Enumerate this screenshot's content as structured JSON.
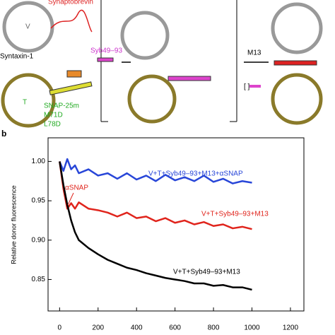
{
  "diagram": {
    "labels": [
      "Synaptobrevin",
      "V",
      "Syntaxin-1",
      "T",
      "SNAP-25m",
      "M71D",
      "L78D",
      "Syb49–93",
      "M13"
    ],
    "panel_label": "b"
  },
  "chart_data": {
    "type": "line",
    "ylabel": "Relative donor fluorescence",
    "annotation": "αSNAP",
    "x": [
      0,
      20,
      40,
      60,
      80,
      100,
      150,
      200,
      250,
      300,
      350,
      400,
      450,
      500,
      550,
      600,
      650,
      700,
      750,
      800,
      850,
      900,
      950,
      1000
    ],
    "series": [
      {
        "name": "V+T+Syb49–93+M13+αSNAP",
        "color": "#2846d8",
        "values": [
          1.0,
          0.988,
          1.003,
          0.99,
          0.995,
          0.985,
          0.99,
          0.982,
          0.985,
          0.978,
          0.985,
          0.977,
          0.982,
          0.975,
          0.983,
          0.976,
          0.98,
          0.975,
          0.982,
          0.974,
          0.978,
          0.972,
          0.975,
          0.973
        ]
      },
      {
        "name": "V+T+Syb49–93+M13",
        "color": "#e0241c",
        "values": [
          1.0,
          0.965,
          0.94,
          0.947,
          0.94,
          0.948,
          0.94,
          0.938,
          0.935,
          0.93,
          0.935,
          0.928,
          0.93,
          0.924,
          0.928,
          0.922,
          0.925,
          0.92,
          0.923,
          0.918,
          0.92,
          0.915,
          0.917,
          0.914
        ]
      },
      {
        "name": "V+T+Syb49–93+M13",
        "color": "#000000",
        "values": [
          1.0,
          0.97,
          0.945,
          0.925,
          0.91,
          0.9,
          0.89,
          0.882,
          0.875,
          0.87,
          0.865,
          0.862,
          0.858,
          0.855,
          0.852,
          0.85,
          0.848,
          0.845,
          0.845,
          0.842,
          0.843,
          0.84,
          0.84,
          0.837
        ]
      }
    ],
    "xlim": [
      -60,
      1270
    ],
    "ylim": [
      0.81,
      1.03
    ],
    "xticks": [
      0,
      200,
      400,
      600,
      800,
      1000,
      1200
    ],
    "yticks": [
      0.85,
      {
        "value": 0.9,
        "label": "0.90"
      },
      0.95,
      {
        "value": 1.0,
        "label": "1.00"
      }
    ]
  }
}
